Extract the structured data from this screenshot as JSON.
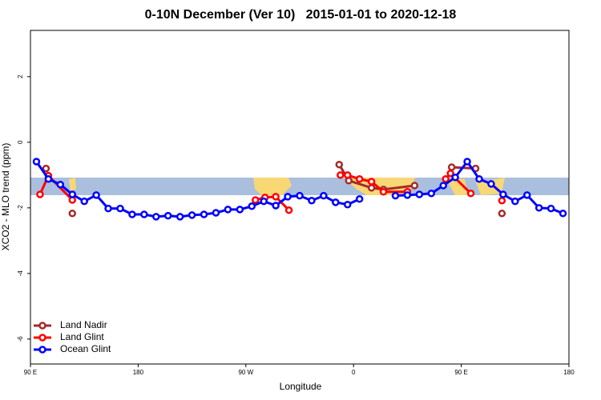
{
  "chart_data": {
    "type": "line",
    "title": "0-10N December (Ver 10)   2015-01-01 to 2020-12-18",
    "xlabel": "Longitude",
    "ylabel": "XCO2 - MLO trend (ppm)",
    "xlim": [
      90,
      540
    ],
    "ylim": [
      -6.76,
      3.41
    ],
    "xticks": [
      {
        "value": 90,
        "label": "90 E"
      },
      {
        "value": 180,
        "label": "180"
      },
      {
        "value": 270,
        "label": "90 W"
      },
      {
        "value": 360,
        "label": "0"
      },
      {
        "value": 450,
        "label": "90 E"
      },
      {
        "value": 540,
        "label": "180"
      }
    ],
    "yticks": [
      -6,
      -4,
      -2,
      0,
      2
    ],
    "legend": "bottomleft",
    "series": [
      {
        "name": "Land Nadir",
        "color": "#a52a2a",
        "x": [
          103,
          null,
          125,
          null,
          348,
          356,
          375,
          385,
          411,
          null,
          442,
          462,
          null,
          484
        ],
        "values": [
          -0.8,
          null,
          -2.17,
          null,
          -0.68,
          -1.17,
          -1.39,
          -1.44,
          -1.32,
          null,
          -0.76,
          -0.8,
          null,
          -2.17
        ]
      },
      {
        "name": "Land Glint",
        "color": "#ff0000",
        "x": [
          98,
          105,
          125,
          null,
          278,
          286,
          295,
          306,
          null,
          349,
          355,
          365,
          375,
          385,
          405,
          null,
          437,
          441,
          458,
          null,
          484
        ],
        "values": [
          -1.59,
          -1.02,
          -1.76,
          null,
          -1.76,
          -1.68,
          -1.66,
          -2.07,
          null,
          -1.0,
          -1.0,
          -1.12,
          -1.2,
          -1.51,
          -1.51,
          null,
          -1.12,
          -0.95,
          -1.56,
          null,
          -1.78
        ]
      },
      {
        "name": "Ocean Glint",
        "color": "#0000ff",
        "x": [
          95,
          105,
          115,
          125,
          135,
          145,
          155,
          165,
          175,
          185,
          195,
          205,
          215,
          225,
          235,
          245,
          255,
          265,
          275,
          285,
          295,
          305,
          315,
          325,
          335,
          345,
          355,
          365,
          375,
          385,
          395,
          405,
          415,
          425,
          435,
          445,
          455,
          465,
          475,
          485,
          495,
          505,
          515,
          525,
          535
        ],
        "values": [
          -0.59,
          -1.12,
          -1.29,
          -1.59,
          -1.8,
          -1.61,
          -2.02,
          -2.02,
          -2.2,
          -2.2,
          -2.27,
          -2.24,
          -2.27,
          -2.22,
          -2.2,
          -2.15,
          -2.05,
          -2.05,
          -1.95,
          -1.8,
          -1.93,
          -1.66,
          -1.63,
          -1.78,
          -1.63,
          -1.83,
          -1.9,
          -1.73,
          null,
          null,
          -1.63,
          -1.61,
          -1.59,
          -1.56,
          -1.32,
          -1.07,
          -0.59,
          -1.12,
          -1.27,
          -1.59,
          -1.8,
          -1.61,
          -2.0,
          -2.02,
          -2.17
        ]
      }
    ]
  }
}
